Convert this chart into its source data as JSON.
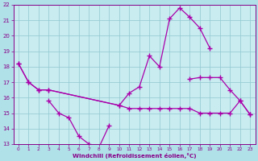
{
  "bg_color": "#b0e0e8",
  "plot_bg_color": "#c8ecf0",
  "line_color": "#aa00aa",
  "grid_color": "#90c8d0",
  "xlabel": "Windchill (Refroidissement éolien,°C)",
  "xlabel_color": "#880088",
  "tick_color": "#880088",
  "xlim": [
    -0.5,
    23.5
  ],
  "ylim": [
    13,
    22
  ],
  "yticks": [
    13,
    14,
    15,
    16,
    17,
    18,
    19,
    20,
    21,
    22
  ],
  "xticks": [
    0,
    1,
    2,
    3,
    4,
    5,
    6,
    7,
    8,
    9,
    10,
    11,
    12,
    13,
    14,
    15,
    16,
    17,
    18,
    19,
    20,
    21,
    22,
    23
  ],
  "s1_x": [
    0,
    1,
    2,
    3,
    10,
    11,
    12,
    13,
    14,
    15,
    16,
    17,
    18,
    19
  ],
  "s1_y": [
    18.2,
    17.0,
    16.5,
    16.5,
    15.5,
    16.3,
    16.7,
    18.7,
    18.0,
    21.1,
    21.8,
    21.2,
    20.5,
    19.2
  ],
  "s2_x": [
    3,
    4,
    5,
    6,
    7,
    8,
    9
  ],
  "s2_y": [
    15.8,
    15.0,
    14.7,
    13.5,
    13.0,
    12.8,
    14.2
  ],
  "s3_x": [
    0,
    1,
    2,
    3,
    10,
    11,
    12,
    13,
    14,
    15,
    16,
    17,
    18,
    19,
    20,
    21,
    22,
    23
  ],
  "s3_y": [
    18.2,
    17.0,
    16.5,
    16.5,
    15.5,
    15.3,
    15.3,
    15.3,
    15.3,
    15.3,
    15.3,
    15.3,
    15.0,
    15.0,
    15.0,
    15.0,
    15.8,
    14.9
  ],
  "s4_x": [
    17,
    18,
    19,
    20,
    21,
    22,
    23
  ],
  "s4_y": [
    17.2,
    17.3,
    17.3,
    17.3,
    16.5,
    15.8,
    14.9
  ]
}
